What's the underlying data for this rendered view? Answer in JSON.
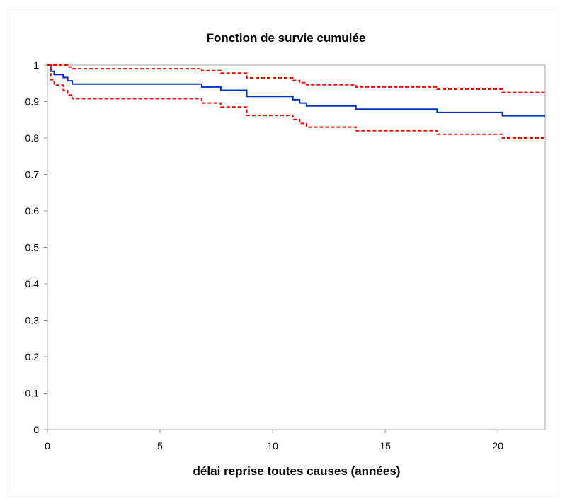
{
  "chart_data": {
    "type": "line",
    "title": "Fonction de survie cumulée",
    "xlabel": "délai reprise toutes causes (années)",
    "ylabel": "",
    "xlim": [
      0,
      22.1
    ],
    "ylim": [
      0,
      1
    ],
    "x_ticks": [
      0,
      5,
      10,
      15,
      20
    ],
    "y_ticks": [
      0,
      0.1,
      0.2,
      0.3,
      0.4,
      0.5,
      0.6,
      0.7,
      0.8,
      0.9,
      1
    ],
    "grid": false,
    "legend": "none",
    "series": [
      {
        "style": "solid",
        "color": "#0033cc",
        "step": true,
        "x": [
          0,
          0.15,
          0.3,
          0.7,
          0.9,
          1.1,
          6.85,
          7.7,
          8.85,
          10.9,
          11.2,
          11.5,
          13.7,
          17.3,
          20.2,
          22.1
        ],
        "y": [
          1,
          0.983,
          0.974,
          0.966,
          0.957,
          0.948,
          0.94,
          0.931,
          0.914,
          0.905,
          0.896,
          0.888,
          0.879,
          0.87,
          0.861,
          0.861
        ]
      },
      {
        "style": "dashed",
        "color": "#ff0000",
        "step": true,
        "x": [
          0,
          0.9,
          1.1,
          6.85,
          7.7,
          8.85,
          10.9,
          11.2,
          11.5,
          13.7,
          17.3,
          20.2,
          22.1
        ],
        "y": [
          1,
          0.995,
          0.99,
          0.985,
          0.978,
          0.965,
          0.958,
          0.952,
          0.946,
          0.94,
          0.934,
          0.925,
          0.925
        ]
      },
      {
        "style": "dashed",
        "color": "#ff0000",
        "step": true,
        "x": [
          0,
          0.15,
          0.3,
          0.7,
          0.9,
          1.1,
          6.85,
          7.7,
          8.85,
          10.9,
          11.2,
          11.5,
          13.7,
          17.3,
          20.2,
          22.1
        ],
        "y": [
          1,
          0.96,
          0.945,
          0.93,
          0.918,
          0.908,
          0.896,
          0.885,
          0.862,
          0.851,
          0.84,
          0.83,
          0.82,
          0.81,
          0.8,
          0.8
        ]
      }
    ]
  }
}
